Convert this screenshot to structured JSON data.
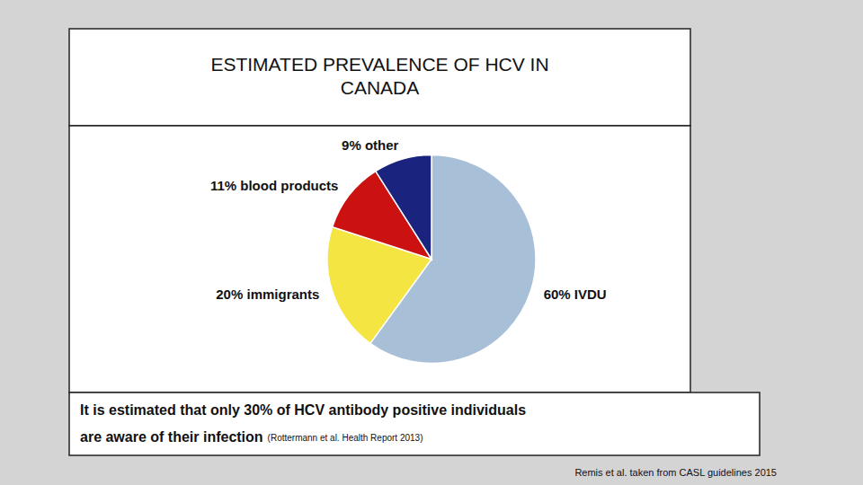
{
  "chart_data": {
    "type": "pie",
    "title": "ESTIMATED PREVALENCE OF HCV IN\nCANADA",
    "values": [
      60,
      20,
      11,
      9
    ],
    "value_labels": [
      "60% IVDU",
      "20% immigrants",
      "11% blood products",
      "9% other"
    ],
    "colors": [
      "#a8bfd8",
      "#f5e542",
      "#cc1111",
      "#1a237e"
    ],
    "data_labels": true,
    "annotations": [
      "It is estimated that only 30% of HCV antibody positive individuals",
      "are aware of their infection ",
      "(Rottermann et al. Health Report 2013)",
      "Remis et al. taken from CASL guidelines 2015"
    ]
  }
}
